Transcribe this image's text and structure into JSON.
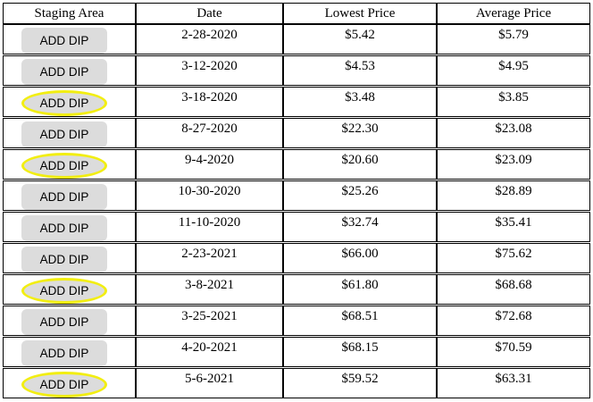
{
  "table": {
    "headers": [
      "Staging Area",
      "Date",
      "Lowest Price",
      "Average Price"
    ],
    "button_label": "ADD DIP",
    "highlight_color": "#f2ee12",
    "button_color": "#dcdcdc",
    "rows": [
      {
        "date": "2-28-2020",
        "lowest": "$5.42",
        "average": "$5.79",
        "highlighted": false
      },
      {
        "date": "3-12-2020",
        "lowest": "$4.53",
        "average": "$4.95",
        "highlighted": false
      },
      {
        "date": "3-18-2020",
        "lowest": "$3.48",
        "average": "$3.85",
        "highlighted": true
      },
      {
        "date": "8-27-2020",
        "lowest": "$22.30",
        "average": "$23.08",
        "highlighted": false
      },
      {
        "date": "9-4-2020",
        "lowest": "$20.60",
        "average": "$23.09",
        "highlighted": true
      },
      {
        "date": "10-30-2020",
        "lowest": "$25.26",
        "average": "$28.89",
        "highlighted": false
      },
      {
        "date": "11-10-2020",
        "lowest": "$32.74",
        "average": "$35.41",
        "highlighted": false
      },
      {
        "date": "2-23-2021",
        "lowest": "$66.00",
        "average": "$75.62",
        "highlighted": false
      },
      {
        "date": "3-8-2021",
        "lowest": "$61.80",
        "average": "$68.68",
        "highlighted": true
      },
      {
        "date": "3-25-2021",
        "lowest": "$68.51",
        "average": "$72.68",
        "highlighted": false
      },
      {
        "date": "4-20-2021",
        "lowest": "$68.15",
        "average": "$70.59",
        "highlighted": false
      },
      {
        "date": "5-6-2021",
        "lowest": "$59.52",
        "average": "$63.31",
        "highlighted": true
      }
    ]
  }
}
